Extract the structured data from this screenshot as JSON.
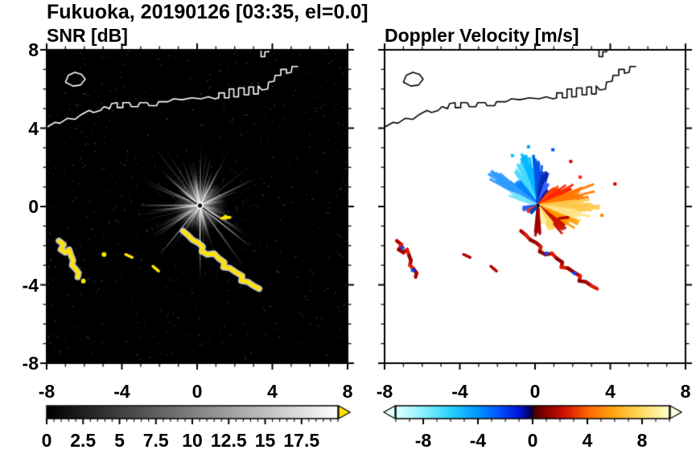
{
  "figure": {
    "title": "Fukuoka, 20190126 [03:35, el=0.0]"
  },
  "chart_data": {
    "type": "heatmap",
    "subtype": "dual-panel weather radar PPI scan",
    "x_axis": {
      "min": -8,
      "max": 8,
      "major_ticks": [
        -8,
        -4,
        0,
        4,
        8
      ],
      "labels": [
        "-8",
        "-4",
        "0",
        "4",
        "8"
      ],
      "minor_step": 1
    },
    "y_axis": {
      "min": -8,
      "max": 8,
      "major_ticks": [
        8,
        4,
        0,
        -4,
        -8
      ],
      "labels": [
        "8",
        "4",
        "0",
        "-4",
        "-8"
      ],
      "minor_step": 1
    },
    "radar_center": [
      0.15,
      0.05
    ],
    "coastlines": [
      [
        [
          -8,
          4.05
        ],
        [
          -7.55,
          4.3
        ],
        [
          -7.3,
          4.25
        ],
        [
          -6.9,
          4.5
        ],
        [
          -6.5,
          4.45
        ],
        [
          -6.15,
          4.7
        ],
        [
          -5.75,
          4.9
        ],
        [
          -5.5,
          4.8
        ],
        [
          -5.15,
          4.9
        ],
        [
          -4.95,
          5.1
        ],
        [
          -4.65,
          5.0
        ],
        [
          -4.55,
          5.25
        ],
        [
          -4.25,
          5.3
        ],
        [
          -4.25,
          5.05
        ],
        [
          -3.95,
          5.05
        ],
        [
          -3.95,
          5.3
        ],
        [
          -3.6,
          5.3
        ],
        [
          -3.5,
          5.1
        ],
        [
          -3.15,
          5.1
        ],
        [
          -3.05,
          5.3
        ],
        [
          -2.65,
          5.3
        ],
        [
          -2.55,
          5.15
        ],
        [
          -2.15,
          5.15
        ],
        [
          -2.05,
          5.35
        ],
        [
          -1.55,
          5.35
        ],
        [
          -1.25,
          5.5
        ],
        [
          -0.8,
          5.45
        ],
        [
          -0.3,
          5.55
        ],
        [
          0.2,
          5.5
        ],
        [
          0.6,
          5.6
        ],
        [
          0.95,
          5.5
        ],
        [
          1.15,
          5.55
        ],
        [
          1.15,
          5.8
        ],
        [
          1.45,
          5.8
        ],
        [
          1.45,
          5.55
        ],
        [
          1.7,
          5.55
        ],
        [
          1.7,
          6.0
        ],
        [
          1.95,
          6.0
        ],
        [
          1.95,
          5.6
        ],
        [
          2.2,
          5.6
        ],
        [
          2.2,
          6.05
        ],
        [
          2.5,
          6.05
        ],
        [
          2.5,
          5.7
        ],
        [
          2.75,
          5.7
        ],
        [
          2.75,
          6.1
        ],
        [
          3.0,
          6.1
        ],
        [
          3.0,
          5.75
        ],
        [
          3.25,
          5.75
        ],
        [
          3.25,
          6.15
        ],
        [
          3.45,
          5.95
        ],
        [
          3.75,
          6.0
        ],
        [
          3.8,
          6.35
        ],
        [
          4.1,
          6.4
        ],
        [
          4.15,
          6.7
        ],
        [
          4.45,
          6.7
        ],
        [
          4.45,
          7.0
        ],
        [
          4.75,
          7.0
        ],
        [
          4.75,
          6.8
        ],
        [
          5.0,
          6.85
        ],
        [
          5.05,
          7.15
        ],
        [
          5.35,
          7.15
        ]
      ],
      [
        [
          -7.0,
          6.35
        ],
        [
          -6.6,
          6.15
        ],
        [
          -6.2,
          6.2
        ],
        [
          -5.95,
          6.5
        ],
        [
          -6.15,
          6.75
        ],
        [
          -6.5,
          6.85
        ],
        [
          -6.85,
          6.7
        ],
        [
          -7.0,
          6.35
        ]
      ],
      [
        [
          3.4,
          8.0
        ],
        [
          3.4,
          7.65
        ],
        [
          3.6,
          7.65
        ],
        [
          3.6,
          7.9
        ],
        [
          3.8,
          7.9
        ],
        [
          3.8,
          8.0
        ]
      ]
    ],
    "clutter_arcs": {
      "main": [
        [
          -0.75,
          -1.25
        ],
        [
          -0.5,
          -1.45
        ],
        [
          -0.25,
          -1.7
        ],
        [
          0.05,
          -1.85
        ],
        [
          0.3,
          -2.05
        ],
        [
          0.25,
          -2.3
        ],
        [
          0.55,
          -2.45
        ],
        [
          0.9,
          -2.4
        ],
        [
          1.15,
          -2.65
        ],
        [
          1.45,
          -2.85
        ],
        [
          1.4,
          -3.1
        ],
        [
          1.75,
          -3.15
        ],
        [
          2.05,
          -3.35
        ],
        [
          2.4,
          -3.55
        ],
        [
          2.35,
          -3.8
        ],
        [
          2.7,
          -3.85
        ],
        [
          3.0,
          -4.05
        ],
        [
          3.3,
          -4.2
        ]
      ],
      "lower_left": [
        [
          -7.35,
          -1.75
        ],
        [
          -7.1,
          -1.95
        ],
        [
          -7.25,
          -2.2
        ],
        [
          -7.0,
          -2.35
        ],
        [
          -6.8,
          -2.2
        ],
        [
          -6.7,
          -2.5
        ],
        [
          -6.6,
          -2.75
        ],
        [
          -6.65,
          -3.0
        ],
        [
          -6.45,
          -3.2
        ],
        [
          -6.3,
          -3.4
        ],
        [
          -6.35,
          -3.6
        ]
      ],
      "dashes": [
        [
          [
            -2.35,
            -3.05
          ],
          [
            -2.05,
            -3.3
          ]
        ],
        [
          [
            1.3,
            -0.6
          ],
          [
            1.75,
            -0.55
          ]
        ],
        [
          [
            -3.8,
            -2.45
          ],
          [
            -3.45,
            -2.6
          ]
        ]
      ]
    },
    "panels": [
      {
        "title": "SNR [dB]",
        "background": "#000000",
        "coast_color": "#ffffff",
        "clutter_color": "#ffe400",
        "clutter_dots": [
          [
            -6.05,
            -3.8
          ],
          [
            1.5,
            -0.55
          ],
          [
            -4.95,
            -2.45
          ]
        ],
        "noise": {
          "seed": 20190126,
          "beam_count": 120,
          "speckle_count": 750
        },
        "bright_beams": [
          {
            "a": 25,
            "l": 3.3
          },
          {
            "a": -38,
            "l": 3.5
          },
          {
            "a": -30,
            "l": 2.7
          },
          {
            "a": 140,
            "l": 2.5
          },
          {
            "a": 186,
            "l": 2.7
          },
          {
            "a": 62,
            "l": 2.1
          },
          {
            "a": -75,
            "l": 1.9
          },
          {
            "a": 100,
            "l": 2.2
          },
          {
            "a": 115,
            "l": 1.8
          },
          {
            "a": -120,
            "l": 1.6
          }
        ],
        "shadow_beams": [
          -36,
          150
        ],
        "colorbar": {
          "min": 0,
          "max": 20,
          "minor_step": 0.5,
          "tick_values": [
            0,
            2.5,
            5,
            7.5,
            10,
            12.5,
            15,
            17.5
          ],
          "tick_labels": [
            "0",
            "2.5",
            "5",
            "7.5",
            "10",
            "12.5",
            "15",
            "17.5"
          ],
          "gradient": [
            [
              0,
              "#000000"
            ],
            [
              1,
              "#ffffff"
            ]
          ],
          "over_arrow_color": "#ffe400"
        }
      },
      {
        "title": "Doppler Velocity [m/s]",
        "background": "#ffffff",
        "coast_color": "#000000",
        "clutter_colors": [
          "#b40000",
          "#dc1e00",
          "#8c0000"
        ],
        "clutter_blue": "#0046ff",
        "clutter_blue_dots": [
          [
            -7.05,
            -2.1
          ],
          [
            -6.5,
            -3.25
          ],
          [
            0.6,
            -2.4
          ],
          [
            2.1,
            -3.4
          ]
        ],
        "fan_seed": 777,
        "fan_wedges": [
          {
            "a0": 96,
            "a1": 112,
            "l": 2.6,
            "c": "#00b8ff"
          },
          {
            "a0": 112,
            "a1": 126,
            "l": 2.1,
            "c": "#49d9ff"
          },
          {
            "a0": 126,
            "a1": 141,
            "l": 1.7,
            "c": "#0084ff"
          },
          {
            "a0": 141,
            "a1": 153,
            "l": 2.7,
            "c": "#2f9bff"
          },
          {
            "a0": 153,
            "a1": 163,
            "l": 1.5,
            "c": "#7ae4ff"
          },
          {
            "a0": 84,
            "a1": 96,
            "l": 2.3,
            "c": "#0054e6"
          },
          {
            "a0": 72,
            "a1": 84,
            "l": 1.7,
            "c": "#0a28b4"
          },
          {
            "a0": 62,
            "a1": 72,
            "l": 1.2,
            "c": "#3c64ff"
          },
          {
            "a0": 50,
            "a1": 62,
            "l": 0.9,
            "c": "#1e1e96"
          },
          {
            "a0": 36,
            "a1": 50,
            "l": 1.3,
            "c": "#ff3c00"
          },
          {
            "a0": 22,
            "a1": 36,
            "l": 1.9,
            "c": "#ff2800"
          },
          {
            "a0": 8,
            "a1": 22,
            "l": 2.8,
            "c": "#ff7800"
          },
          {
            "a0": -6,
            "a1": 8,
            "l": 3.1,
            "c": "#ffc84b"
          },
          {
            "a0": -20,
            "a1": -6,
            "l": 2.5,
            "c": "#ffe287"
          },
          {
            "a0": -34,
            "a1": -20,
            "l": 2.1,
            "c": "#ff9b00"
          },
          {
            "a0": -48,
            "a1": -34,
            "l": 1.7,
            "c": "#cd1400"
          },
          {
            "a0": -64,
            "a1": -48,
            "l": 1.3,
            "c": "#ffd75f"
          },
          {
            "a0": -80,
            "a1": -64,
            "l": 0.9,
            "c": "#ffeeaa"
          },
          {
            "a0": -96,
            "a1": -84,
            "l": 1.5,
            "c": "#a00000"
          },
          {
            "a0": 186,
            "a1": 200,
            "l": 0.8,
            "c": "#2864ff"
          },
          {
            "a0": 203,
            "a1": 214,
            "l": 0.6,
            "c": "#e63c1e"
          },
          {
            "a0": 218,
            "a1": 230,
            "l": 0.5,
            "c": "#0046c8"
          }
        ],
        "specks": [
          [
            2.4,
            1.5,
            "#ff2000"
          ],
          [
            4.25,
            1.15,
            "#c80000"
          ],
          [
            0.95,
            2.9,
            "#0050ff"
          ],
          [
            -0.35,
            3.05,
            "#00a0ff"
          ],
          [
            3.55,
            -0.45,
            "#ff8c00"
          ],
          [
            1.9,
            2.3,
            "#e60000"
          ],
          [
            -1.2,
            2.6,
            "#00c8ff"
          ]
        ],
        "colorbar": {
          "min": -10,
          "max": 10,
          "minor_step": 1,
          "tick_values": [
            -8,
            -4,
            0,
            4,
            8
          ],
          "tick_labels": [
            "-8",
            "-4",
            "0",
            "4",
            "8"
          ],
          "gradient": [
            [
              0,
              "#dcffff"
            ],
            [
              0.1,
              "#8cf0ff"
            ],
            [
              0.2,
              "#28d2ff"
            ],
            [
              0.3,
              "#0096ff"
            ],
            [
              0.38,
              "#0050ff"
            ],
            [
              0.45,
              "#0014dc"
            ],
            [
              0.495,
              "#000050"
            ],
            [
              0.505,
              "#460000"
            ],
            [
              0.55,
              "#8c0000"
            ],
            [
              0.62,
              "#d21400"
            ],
            [
              0.7,
              "#ff6400"
            ],
            [
              0.8,
              "#ffaa14"
            ],
            [
              0.9,
              "#ffdc64"
            ],
            [
              1,
              "#ffffc8"
            ]
          ],
          "under_arrow_color": "#e0ffff",
          "over_arrow_color": "#ffffe6"
        }
      }
    ]
  }
}
